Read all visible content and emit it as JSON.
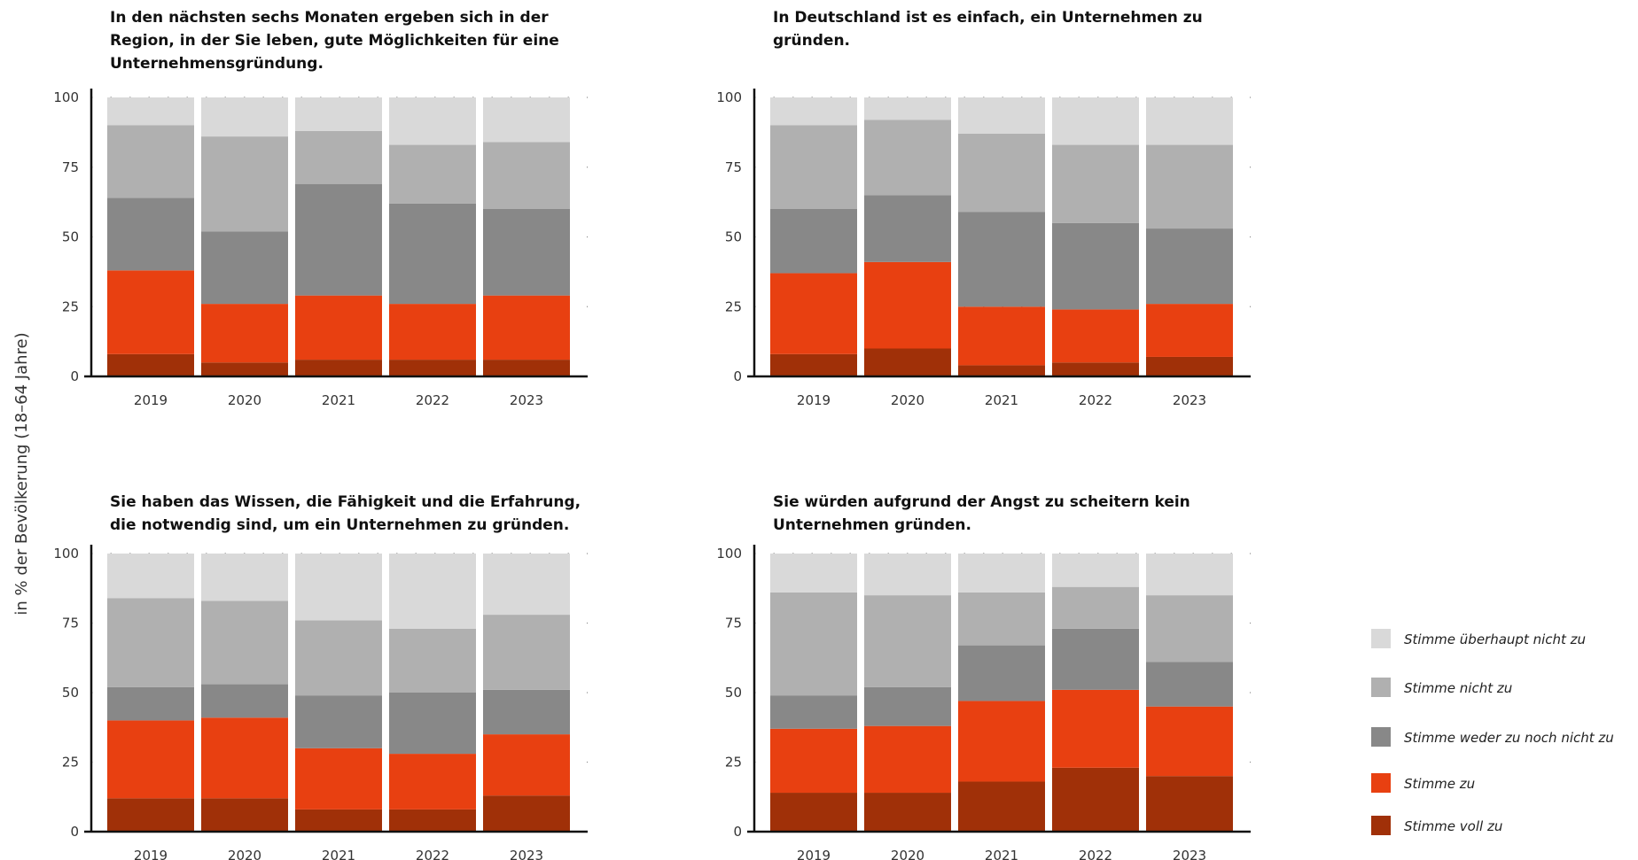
{
  "ylabel": "in % der Bevölkerung (18–64 Jahre)",
  "colors": {
    "Stimme überhaupt nicht zu": "#d9d9d9",
    "Stimme nicht zu": "#b0b0b0",
    "Stimme weder zu noch nicht zu": "#888888",
    "Stimme zu": "#e84011",
    "Stimme voll zu": "#a03008"
  },
  "legend": [
    "Stimme überhaupt nicht zu",
    "Stimme nicht zu",
    "Stimme weder zu noch nicht zu",
    "Stimme zu",
    "Stimme voll zu"
  ],
  "chart_data": [
    {
      "type": "bar",
      "stacked": true,
      "title": [
        "In den nächsten sechs Monaten ergeben sich in der",
        "Region, in der Sie leben, gute Möglichkeiten für eine",
        "Unternehmensgründung."
      ],
      "categories": [
        "2019",
        "2020",
        "2021",
        "2022",
        "2023"
      ],
      "yticks": [
        "0",
        "25",
        "50",
        "75",
        "100"
      ],
      "ylim": [
        0,
        100
      ],
      "series": [
        {
          "name": "Stimme voll zu",
          "values": [
            8,
            5,
            6,
            6,
            6
          ]
        },
        {
          "name": "Stimme zu",
          "values": [
            30,
            21,
            23,
            20,
            23
          ]
        },
        {
          "name": "Stimme weder zu noch nicht zu",
          "values": [
            26,
            26,
            40,
            36,
            31
          ]
        },
        {
          "name": "Stimme nicht zu",
          "values": [
            26,
            34,
            19,
            21,
            24
          ]
        },
        {
          "name": "Stimme überhaupt nicht zu",
          "values": [
            10,
            14,
            12,
            17,
            16
          ]
        }
      ]
    },
    {
      "type": "bar",
      "stacked": true,
      "title": [
        "In Deutschland ist es einfach, ein Unternehmen zu",
        "gründen."
      ],
      "categories": [
        "2019",
        "2020",
        "2021",
        "2022",
        "2023"
      ],
      "yticks": [
        "0",
        "25",
        "50",
        "75",
        "100"
      ],
      "ylim": [
        0,
        100
      ],
      "series": [
        {
          "name": "Stimme voll zu",
          "values": [
            8,
            10,
            4,
            5,
            7
          ]
        },
        {
          "name": "Stimme zu",
          "values": [
            29,
            31,
            21,
            19,
            19
          ]
        },
        {
          "name": "Stimme weder zu noch nicht zu",
          "values": [
            23,
            24,
            34,
            31,
            27
          ]
        },
        {
          "name": "Stimme nicht zu",
          "values": [
            30,
            27,
            28,
            28,
            30
          ]
        },
        {
          "name": "Stimme überhaupt nicht zu",
          "values": [
            10,
            8,
            13,
            17,
            17
          ]
        }
      ]
    },
    {
      "type": "bar",
      "stacked": true,
      "title": [
        "Sie haben das Wissen, die Fähigkeit und die Erfahrung,",
        "die notwendig sind, um ein Unternehmen zu gründen."
      ],
      "categories": [
        "2019",
        "2020",
        "2021",
        "2022",
        "2023"
      ],
      "yticks": [
        "0",
        "25",
        "50",
        "75",
        "100"
      ],
      "ylim": [
        0,
        100
      ],
      "series": [
        {
          "name": "Stimme voll zu",
          "values": [
            12,
            12,
            8,
            8,
            13
          ]
        },
        {
          "name": "Stimme zu",
          "values": [
            28,
            29,
            22,
            20,
            22
          ]
        },
        {
          "name": "Stimme weder zu noch nicht zu",
          "values": [
            12,
            12,
            19,
            22,
            16
          ]
        },
        {
          "name": "Stimme nicht zu",
          "values": [
            32,
            30,
            27,
            23,
            27
          ]
        },
        {
          "name": "Stimme überhaupt nicht zu",
          "values": [
            16,
            17,
            24,
            27,
            22
          ]
        }
      ]
    },
    {
      "type": "bar",
      "stacked": true,
      "title": [
        "Sie würden aufgrund der Angst zu scheitern kein",
        "Unternehmen gründen."
      ],
      "categories": [
        "2019",
        "2020",
        "2021",
        "2022",
        "2023"
      ],
      "yticks": [
        "0",
        "25",
        "50",
        "75",
        "100"
      ],
      "ylim": [
        0,
        100
      ],
      "series": [
        {
          "name": "Stimme voll zu",
          "values": [
            14,
            14,
            18,
            23,
            20
          ]
        },
        {
          "name": "Stimme zu",
          "values": [
            23,
            24,
            29,
            28,
            25
          ]
        },
        {
          "name": "Stimme weder zu noch nicht zu",
          "values": [
            12,
            14,
            20,
            22,
            16
          ]
        },
        {
          "name": "Stimme nicht zu",
          "values": [
            37,
            33,
            19,
            15,
            24
          ]
        },
        {
          "name": "Stimme überhaupt nicht zu",
          "values": [
            14,
            15,
            14,
            12,
            15
          ]
        }
      ]
    }
  ]
}
